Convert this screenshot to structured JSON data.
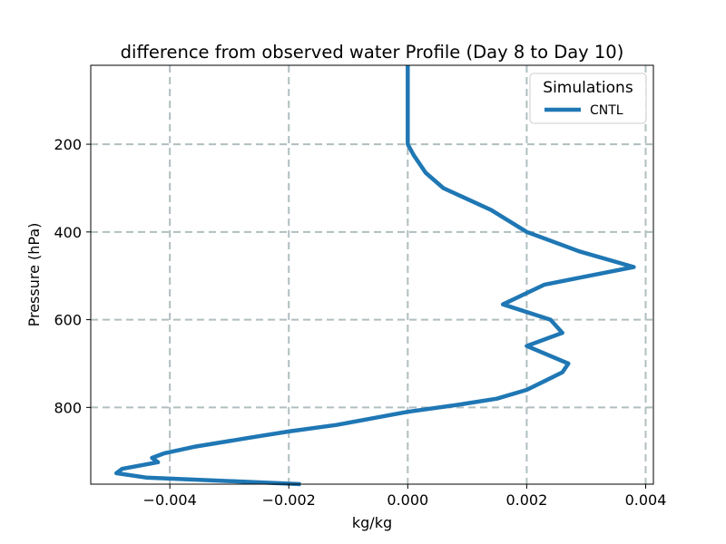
{
  "chart_data": {
    "type": "line",
    "title": "difference from observed water Profile (Day 8 to Day 10)",
    "xlabel": "kg/kg",
    "ylabel": "Pressure (hPa)",
    "xlim": [
      -0.00533,
      0.00413
    ],
    "ylim": [
      975,
      20
    ],
    "y_inverted": true,
    "grid": true,
    "xticks": [
      -0.004,
      -0.002,
      0.0,
      0.002,
      0.004
    ],
    "xtick_labels": [
      "−0.004",
      "−0.002",
      "0.000",
      "0.002",
      "0.004"
    ],
    "yticks": [
      200,
      400,
      600,
      800
    ],
    "ytick_labels": [
      "200",
      "400",
      "600",
      "800"
    ],
    "legend": {
      "title": "Simulations",
      "position": "top-right"
    },
    "series": [
      {
        "name": "CNTL",
        "color": "#1f77b4",
        "points": [
          {
            "x": -0.0018,
            "y": 975
          },
          {
            "x": -0.0044,
            "y": 960
          },
          {
            "x": -0.0049,
            "y": 950
          },
          {
            "x": -0.0048,
            "y": 940
          },
          {
            "x": -0.0042,
            "y": 925
          },
          {
            "x": -0.0043,
            "y": 915
          },
          {
            "x": -0.0041,
            "y": 905
          },
          {
            "x": -0.0036,
            "y": 890
          },
          {
            "x": -0.0027,
            "y": 870
          },
          {
            "x": -0.002,
            "y": 855
          },
          {
            "x": -0.0012,
            "y": 840
          },
          {
            "x": -0.0006,
            "y": 825
          },
          {
            "x": 0.0,
            "y": 810
          },
          {
            "x": 0.0008,
            "y": 795
          },
          {
            "x": 0.0015,
            "y": 780
          },
          {
            "x": 0.002,
            "y": 760
          },
          {
            "x": 0.0023,
            "y": 740
          },
          {
            "x": 0.0026,
            "y": 720
          },
          {
            "x": 0.0027,
            "y": 700
          },
          {
            "x": 0.002,
            "y": 660
          },
          {
            "x": 0.0026,
            "y": 630
          },
          {
            "x": 0.0024,
            "y": 600
          },
          {
            "x": 0.0016,
            "y": 565
          },
          {
            "x": 0.0023,
            "y": 520
          },
          {
            "x": 0.0038,
            "y": 480
          },
          {
            "x": 0.0029,
            "y": 445
          },
          {
            "x": 0.002,
            "y": 400
          },
          {
            "x": 0.0014,
            "y": 350
          },
          {
            "x": 0.0006,
            "y": 300
          },
          {
            "x": 0.0003,
            "y": 265
          },
          {
            "x": 0.0001,
            "y": 225
          },
          {
            "x": 0.0,
            "y": 200
          },
          {
            "x": 0.0,
            "y": 180
          },
          {
            "x": 0.0,
            "y": 120
          },
          {
            "x": 0.0,
            "y": 20
          }
        ]
      }
    ]
  }
}
